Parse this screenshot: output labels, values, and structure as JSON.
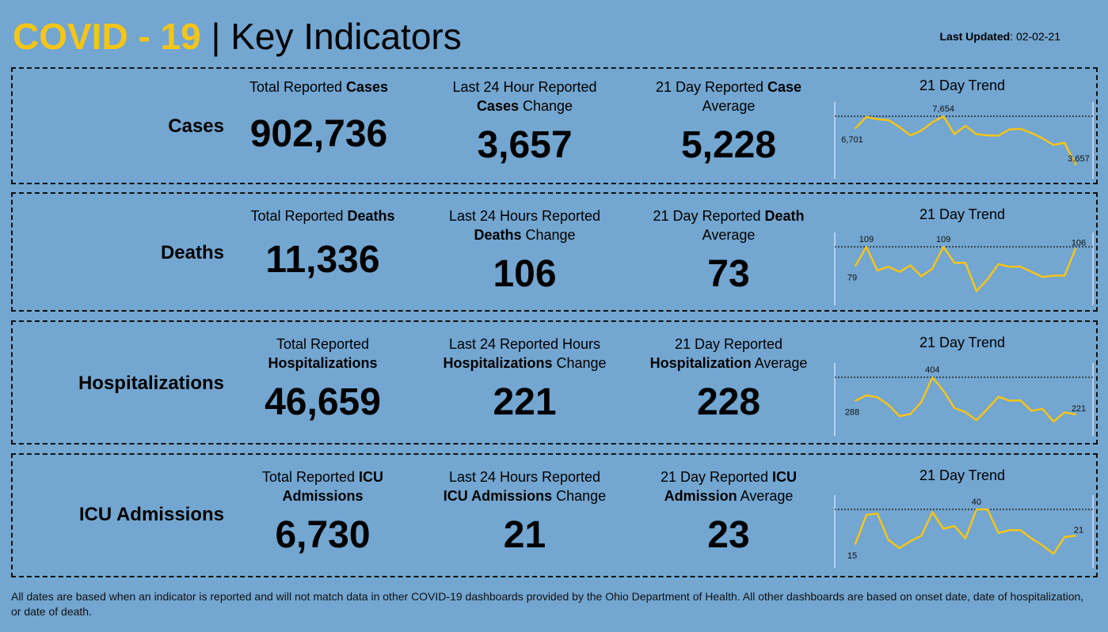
{
  "header": {
    "title_accent": "COVID - 19",
    "title_sep": " | ",
    "title_rest": "Key Indicators",
    "updated_label": "Last Updated",
    "updated_value": ": 02-02-21"
  },
  "colors": {
    "background": "#73a6d0",
    "accent": "#f5c518",
    "line": "#f5c518"
  },
  "rows": [
    {
      "name": "Cases",
      "total_pre": "Total Reported ",
      "total_bold": "Cases",
      "total_post": "",
      "total_value": "902,736",
      "change_pre": "Last 24 Hour Reported",
      "change_bold": "Cases",
      "change_post": " Change",
      "change_value": "3,657",
      "avg_pre": "21 Day Reported ",
      "avg_bold": "Case",
      "avg_post": "Average",
      "avg_value": "5,228",
      "trend_title": "21 Day Trend",
      "trend": {
        "values": [
          6701,
          7654,
          7450,
          7380,
          6800,
          6100,
          6500,
          7200,
          7700,
          6200,
          6900,
          6200,
          6100,
          6080,
          6600,
          6650,
          6300,
          5850,
          5300,
          5480,
          3657
        ],
        "first_label": "6,701",
        "max_label": "7,654",
        "last_label": "3,657"
      }
    },
    {
      "name": "Deaths",
      "total_pre": "Total Reported ",
      "total_bold": "Deaths",
      "total_post": "",
      "total_value": "11,336",
      "change_pre": "Last 24 Hours Reported",
      "change_bold": "Deaths",
      "change_post": " Change",
      "change_value": "106",
      "avg_pre": "21 Day Reported ",
      "avg_bold": "Death",
      "avg_post": "Average",
      "avg_value": "73",
      "trend_title": "21 Day Trend",
      "trend": {
        "values": [
          79,
          109,
          72,
          78,
          70,
          80,
          63,
          75,
          109,
          84,
          84,
          40,
          58,
          82,
          78,
          78,
          70,
          62,
          64,
          64,
          106
        ],
        "first_label": "79",
        "max_label": "109",
        "max2_label": "109",
        "last_label": "106"
      }
    },
    {
      "name": "Hospitalizations",
      "total_pre": "Total Reported",
      "total_bold": "Hospitalizations",
      "total_post": "",
      "total_value": "46,659",
      "change_pre": "Last 24 Reported Hours",
      "change_bold": "Hospitalizations",
      "change_post": " Change",
      "change_value": "221",
      "avg_pre": "21 Day Reported",
      "avg_bold": "Hospitalization",
      "avg_post": " Average",
      "avg_value": "228",
      "trend_title": "21 Day Trend",
      "trend": {
        "values": [
          288,
          315,
          305,
          268,
          212,
          222,
          282,
          404,
          338,
          252,
          232,
          192,
          248,
          308,
          288,
          290,
          238,
          248,
          185,
          230,
          221
        ],
        "first_label": "288",
        "max_label": "404",
        "last_label": "221"
      }
    },
    {
      "name": "ICU Admissions",
      "total_pre": "Total Reported ",
      "total_bold": "ICU",
      "total_post": "Admissions",
      "total_value": "6,730",
      "change_pre": "Last 24 Hours Reported",
      "change_bold": "ICU Admissions",
      "change_post": " Change",
      "change_value": "21",
      "avg_pre": "21 Day Reported ",
      "avg_bold": "ICU",
      "avg_post": "Admission",
      "avg_post2": " Average",
      "avg_value": "23",
      "trend_title": "21 Day Trend",
      "trend": {
        "values": [
          15,
          36,
          37,
          18,
          12,
          17,
          21,
          38,
          26,
          28,
          19,
          40,
          40,
          23,
          25,
          25,
          19,
          14,
          8,
          20,
          21
        ],
        "first_label": "15",
        "max_label": "40",
        "last_label": "21"
      }
    }
  ],
  "footer": "All dates are based when an indicator is reported and will not match data in other COVID-19 dashboards provided by the Ohio Department of Health. All other dashboards are based on onset date, date of hospitalization, or date of death."
}
